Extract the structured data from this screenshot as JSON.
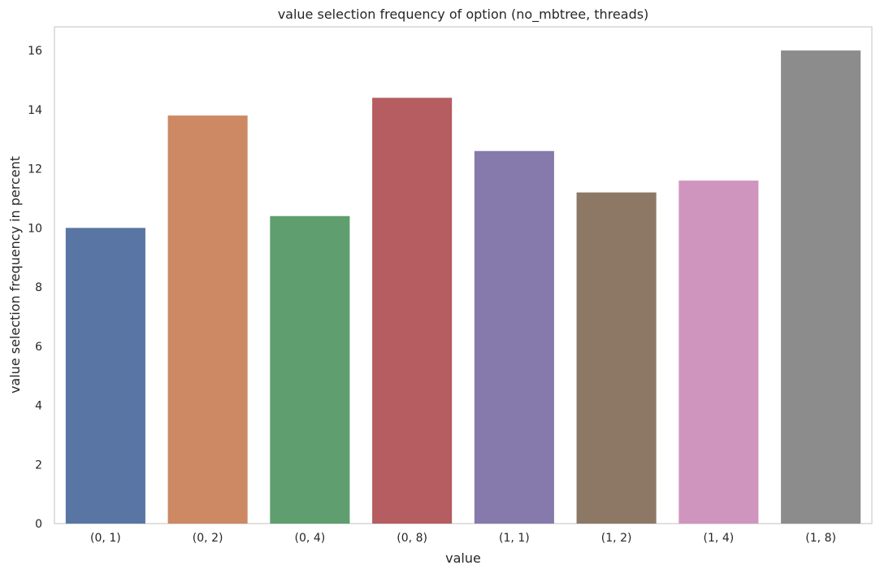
{
  "chart_data": {
    "type": "bar",
    "title": "value selection frequency of option (no_mbtree, threads)",
    "xlabel": "value",
    "ylabel": "value selection frequency in percent",
    "categories": [
      "(0, 1)",
      "(0, 2)",
      "(0, 4)",
      "(0, 8)",
      "(1, 1)",
      "(1, 2)",
      "(1, 4)",
      "(1, 8)"
    ],
    "values": [
      10.0,
      13.8,
      10.4,
      14.4,
      12.6,
      11.2,
      11.6,
      16.0
    ],
    "colors": [
      "#5975a4",
      "#cc8963",
      "#5f9e6e",
      "#b55d60",
      "#857aab",
      "#8d7866",
      "#d095bf",
      "#8c8c8c"
    ],
    "ylim": [
      0,
      16.8
    ],
    "yticks": [
      0,
      2,
      4,
      6,
      8,
      10,
      12,
      14,
      16
    ],
    "grid": false,
    "legend": "none"
  }
}
